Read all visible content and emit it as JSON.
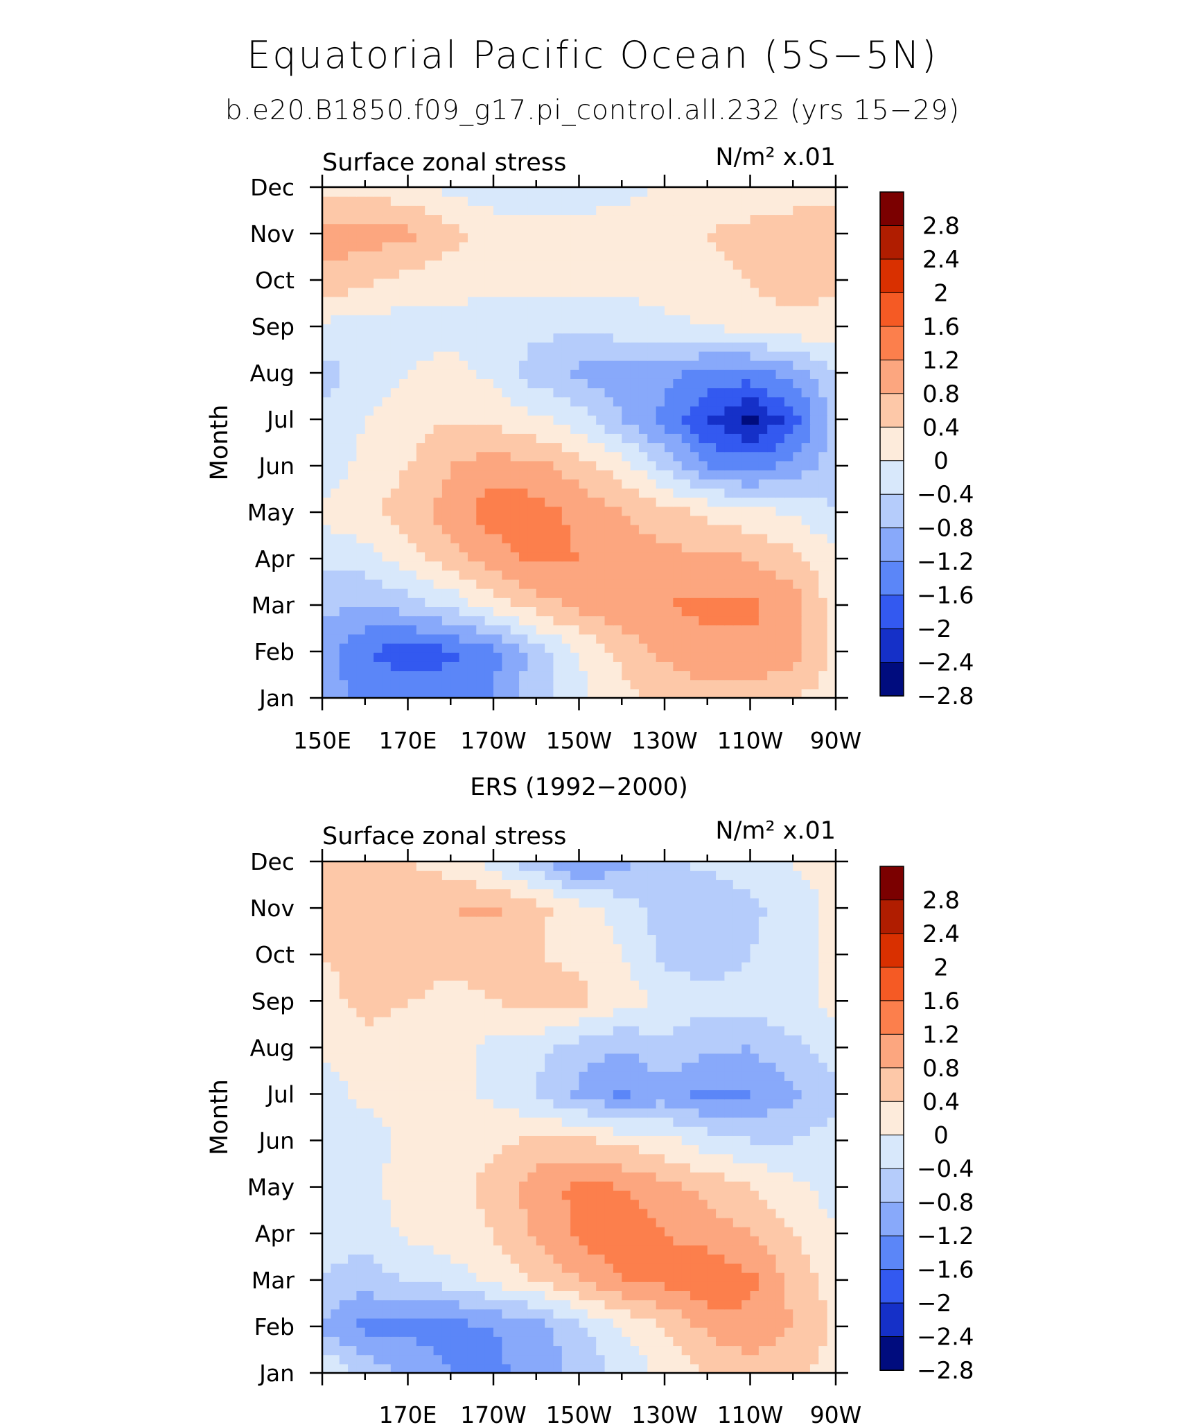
{
  "figure": {
    "title": "Equatorial Pacific Ocean (5S−5N)",
    "subtitle": "b.e20.B1850.f09_g17.pi_control.all.232 (yrs 15−29)"
  },
  "chart_data": [
    {
      "type": "heatmap",
      "panel_title": "",
      "variable": "Surface zonal stress",
      "units": "N/m² x.01",
      "ylabel": "Month",
      "x_tick_labels": [
        "150E",
        "170E",
        "170W",
        "150W",
        "130W",
        "110W",
        "90W"
      ],
      "x_tick_lons": [
        150,
        170,
        190,
        210,
        230,
        250,
        270
      ],
      "xlim": [
        150,
        270
      ],
      "months": [
        "Jan",
        "Feb",
        "Mar",
        "Apr",
        "May",
        "Jun",
        "Jul",
        "Aug",
        "Sep",
        "Oct",
        "Nov",
        "Dec"
      ],
      "grid_lons": [
        150,
        160,
        170,
        180,
        190,
        200,
        210,
        220,
        230,
        240,
        250,
        260,
        270
      ],
      "values": [
        [
          -1.0,
          -1.3,
          -1.4,
          -1.3,
          -1.2,
          -0.6,
          -0.1,
          0.3,
          0.5,
          0.6,
          0.6,
          0.4,
          0.2
        ],
        [
          -1.0,
          -1.6,
          -1.8,
          -1.7,
          -1.3,
          -0.6,
          0.0,
          0.5,
          0.9,
          1.1,
          1.1,
          1.0,
          0.3
        ],
        [
          -0.7,
          -0.8,
          -0.6,
          -0.3,
          0.2,
          0.6,
          0.9,
          1.1,
          1.2,
          1.3,
          1.3,
          1.0,
          0.2
        ],
        [
          -0.3,
          -0.2,
          0.2,
          0.6,
          1.0,
          1.3,
          1.2,
          1.0,
          0.9,
          0.9,
          0.8,
          0.5,
          0.1
        ],
        [
          0.1,
          0.3,
          0.6,
          1.0,
          1.4,
          1.4,
          1.1,
          0.8,
          0.6,
          0.3,
          0.1,
          0.0,
          -0.4
        ],
        [
          -0.2,
          0.1,
          0.4,
          0.8,
          1.0,
          0.9,
          0.6,
          0.2,
          -0.5,
          -1.2,
          -1.4,
          -1.1,
          -0.6
        ],
        [
          -0.3,
          0.0,
          0.2,
          0.4,
          0.3,
          0.1,
          -0.2,
          -0.8,
          -1.3,
          -2.0,
          -2.5,
          -1.8,
          -0.6
        ],
        [
          -0.6,
          -0.2,
          0.0,
          0.2,
          -0.1,
          -0.6,
          -0.9,
          -1.0,
          -1.1,
          -1.3,
          -1.4,
          -1.0,
          -0.4
        ],
        [
          -0.1,
          -0.2,
          -0.2,
          -0.2,
          -0.3,
          -0.3,
          -0.3,
          -0.2,
          -0.1,
          0.0,
          0.2,
          0.3,
          0.2
        ],
        [
          0.7,
          0.5,
          0.3,
          0.2,
          0.2,
          0.2,
          0.2,
          0.1,
          0.2,
          0.3,
          0.4,
          0.6,
          0.5
        ],
        [
          1.0,
          1.0,
          0.9,
          0.5,
          0.3,
          0.3,
          0.2,
          0.4,
          0.4,
          0.4,
          0.5,
          0.6,
          0.6
        ],
        [
          0.3,
          0.3,
          0.1,
          -0.1,
          -0.3,
          -0.4,
          -0.3,
          -0.2,
          0.1,
          0.2,
          0.2,
          0.2,
          0.3
        ]
      ],
      "colorbar": {
        "levels": [
          "2.8",
          "2.4",
          "2",
          "1.6",
          "1.2",
          "0.8",
          "0.4",
          "0",
          "−0.4",
          "−0.8",
          "−1.2",
          "−1.6",
          "−2",
          "−2.4",
          "−2.8"
        ],
        "colors": [
          "#7b0000",
          "#b01d00",
          "#d93000",
          "#f55a24",
          "#fc7f4c",
          "#fca67f",
          "#fdc8a8",
          "#fdebdb",
          "#d8e8fb",
          "#b5ccfb",
          "#88a9fa",
          "#5b86f8",
          "#3359f0",
          "#1530c8",
          "#000c7e"
        ]
      }
    },
    {
      "type": "heatmap",
      "panel_title": "ERS (1992−2000)",
      "variable": "Surface zonal stress",
      "units": "N/m² x.01",
      "ylabel": "Month",
      "x_tick_labels": [
        "170E",
        "170W",
        "150W",
        "130W",
        "110W",
        "90W"
      ],
      "x_tick_lons": [
        170,
        190,
        210,
        230,
        250,
        270
      ],
      "xlim": [
        150,
        270
      ],
      "months": [
        "Jan",
        "Feb",
        "Mar",
        "Apr",
        "May",
        "Jun",
        "Jul",
        "Aug",
        "Sep",
        "Oct",
        "Nov",
        "Dec"
      ],
      "grid_lons": [
        150,
        160,
        170,
        180,
        190,
        200,
        210,
        220,
        230,
        240,
        250,
        260,
        270
      ],
      "values": [
        [
          0.1,
          -0.5,
          -0.9,
          -1.2,
          -1.3,
          -1.0,
          -0.7,
          -0.3,
          0.1,
          0.4,
          0.6,
          0.5,
          0.2
        ],
        [
          -0.9,
          -1.3,
          -1.3,
          -1.4,
          -1.2,
          -1.0,
          -0.5,
          0.0,
          0.4,
          0.9,
          1.1,
          0.8,
          0.3
        ],
        [
          -0.4,
          -0.6,
          -0.4,
          -0.2,
          0.1,
          0.4,
          0.8,
          1.2,
          1.3,
          1.6,
          1.3,
          0.7,
          0.2
        ],
        [
          -0.2,
          -0.3,
          0.1,
          0.2,
          0.4,
          0.9,
          1.3,
          1.5,
          1.2,
          1.0,
          0.8,
          0.4,
          0.1
        ],
        [
          -0.2,
          -0.1,
          0.2,
          0.3,
          0.5,
          1.0,
          1.3,
          1.2,
          0.9,
          0.7,
          0.4,
          0.1,
          -0.2
        ],
        [
          -0.3,
          -0.2,
          0.1,
          0.2,
          0.3,
          0.5,
          0.5,
          0.3,
          0.1,
          -0.2,
          -0.4,
          -0.4,
          -0.2
        ],
        [
          -0.2,
          0.1,
          0.2,
          0.2,
          -0.1,
          -0.4,
          -0.9,
          -1.3,
          -1.0,
          -1.3,
          -1.2,
          -0.9,
          -0.5
        ],
        [
          0.1,
          0.3,
          0.2,
          0.1,
          -0.1,
          -0.3,
          -0.6,
          -0.8,
          -0.5,
          -0.7,
          -0.8,
          -0.5,
          -0.2
        ],
        [
          0.3,
          0.5,
          0.4,
          0.3,
          0.4,
          0.6,
          0.5,
          0.2,
          -0.1,
          -0.3,
          -0.2,
          -0.1,
          0.1
        ],
        [
          0.4,
          0.5,
          0.6,
          0.5,
          0.5,
          0.4,
          0.3,
          0.0,
          -0.5,
          -0.6,
          -0.4,
          -0.2,
          0.1
        ],
        [
          0.4,
          0.5,
          0.7,
          0.8,
          0.9,
          0.5,
          0.2,
          -0.2,
          -0.6,
          -0.7,
          -0.5,
          -0.2,
          0.1
        ],
        [
          0.4,
          0.6,
          0.4,
          0.2,
          -0.2,
          -0.7,
          -1.3,
          -1.0,
          -0.5,
          -0.3,
          -0.2,
          0.0,
          0.2
        ]
      ],
      "colorbar": {
        "levels": [
          "2.8",
          "2.4",
          "2",
          "1.6",
          "1.2",
          "0.8",
          "0.4",
          "0",
          "−0.4",
          "−0.8",
          "−1.2",
          "−1.6",
          "−2",
          "−2.4",
          "−2.8"
        ],
        "colors": [
          "#7b0000",
          "#b01d00",
          "#d93000",
          "#f55a24",
          "#fc7f4c",
          "#fca67f",
          "#fdc8a8",
          "#fdebdb",
          "#d8e8fb",
          "#b5ccfb",
          "#88a9fa",
          "#5b86f8",
          "#3359f0",
          "#1530c8",
          "#000c7e"
        ]
      }
    }
  ]
}
